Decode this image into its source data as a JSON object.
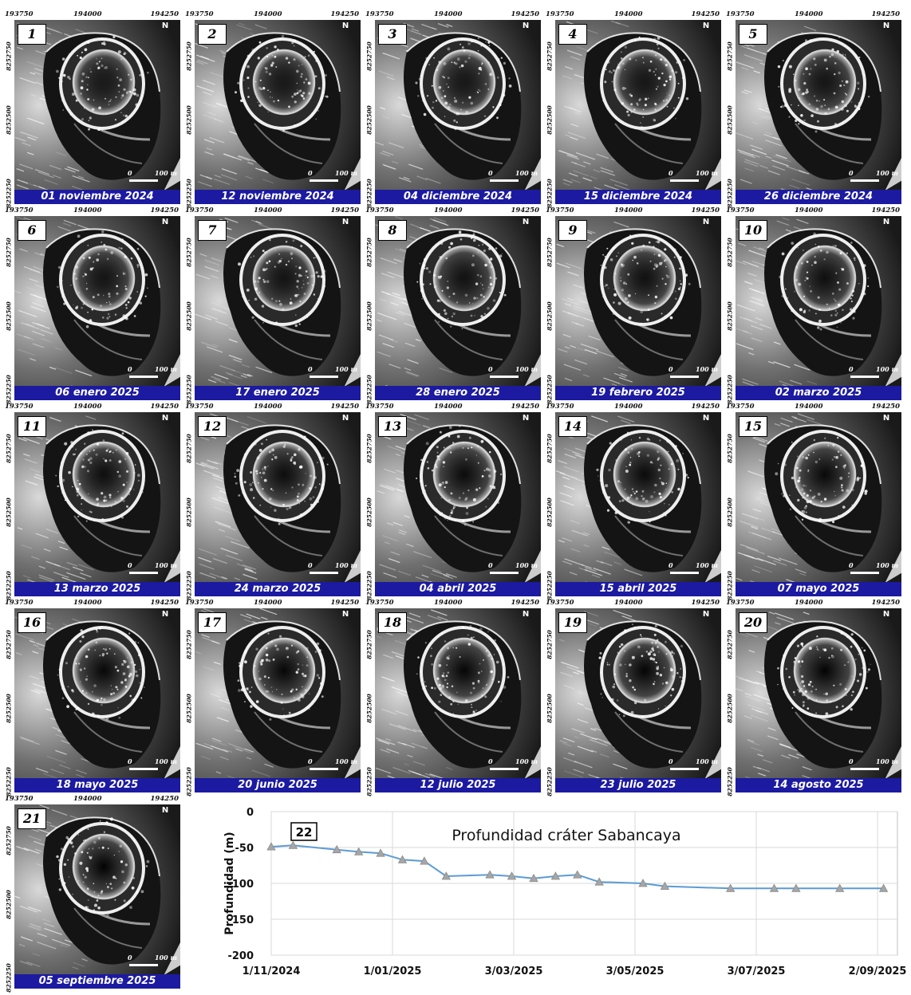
{
  "map_coords": {
    "x_ticks": [
      "193750",
      "194000",
      "194250"
    ],
    "y_ticks": [
      "8252750",
      "8252500",
      "8252250"
    ],
    "north_label": "N",
    "scale_zero": "0",
    "scale_label": "100 m"
  },
  "panels": [
    {
      "number": "1",
      "date": "01 noviembre 2024"
    },
    {
      "number": "2",
      "date": "12 noviembre 2024"
    },
    {
      "number": "3",
      "date": "04 diciembre 2024"
    },
    {
      "number": "4",
      "date": "15 diciembre 2024"
    },
    {
      "number": "5",
      "date": "26 diciembre 2024"
    },
    {
      "number": "6",
      "date": "06 enero 2025"
    },
    {
      "number": "7",
      "date": "17 enero 2025"
    },
    {
      "number": "8",
      "date": "28 enero 2025"
    },
    {
      "number": "9",
      "date": "19 febrero 2025"
    },
    {
      "number": "10",
      "date": "02 marzo 2025"
    },
    {
      "number": "11",
      "date": "13 marzo 2025"
    },
    {
      "number": "12",
      "date": "24 marzo 2025"
    },
    {
      "number": "13",
      "date": "04 abril 2025"
    },
    {
      "number": "14",
      "date": "15 abril 2025"
    },
    {
      "number": "15",
      "date": "07 mayo 2025"
    },
    {
      "number": "16",
      "date": "18 mayo 2025"
    },
    {
      "number": "17",
      "date": "20 junio 2025"
    },
    {
      "number": "18",
      "date": "12 julio 2025"
    },
    {
      "number": "19",
      "date": "23 julio 2025"
    },
    {
      "number": "20",
      "date": "14 agosto 2025"
    },
    {
      "number": "21",
      "date": "05 septiembre 2025"
    }
  ],
  "chart_data": {
    "type": "line",
    "panel_number": "22",
    "title": "Profundidad cráter Sabancaya",
    "xlabel": "",
    "ylabel": "Profundidad (m)",
    "x_tick_labels": [
      "1/11/2024",
      "1/01/2025",
      "3/03/2025",
      "3/05/2025",
      "3/07/2025",
      "2/09/2025"
    ],
    "y_tick_labels": [
      "0",
      "-50",
      "-100",
      "-150",
      "-200"
    ],
    "xlim": [
      "2024-11-01",
      "2025-09-12"
    ],
    "ylim": [
      -200,
      0
    ],
    "grid": true,
    "line_color": "#5b9bd5",
    "marker_color": "#a6a6a6",
    "marker": "triangle",
    "series": [
      {
        "x": [
          "2024-11-01",
          "2024-11-12",
          "2024-12-04",
          "2024-12-15",
          "2024-12-26",
          "2025-01-06",
          "2025-01-17",
          "2025-01-28",
          "2025-02-19",
          "2025-03-02",
          "2025-03-13",
          "2025-03-24",
          "2025-04-04",
          "2025-04-15",
          "2025-05-07",
          "2025-05-18",
          "2025-06-20",
          "2025-07-12",
          "2025-07-23",
          "2025-08-14",
          "2025-09-05"
        ],
        "y": [
          -49,
          -47,
          -53,
          -56,
          -58,
          -67,
          -69,
          -90,
          -88,
          -90,
          -93,
          -90,
          -88,
          -98,
          -100,
          -104,
          -107,
          -107,
          -107,
          -107,
          -107
        ]
      }
    ]
  }
}
